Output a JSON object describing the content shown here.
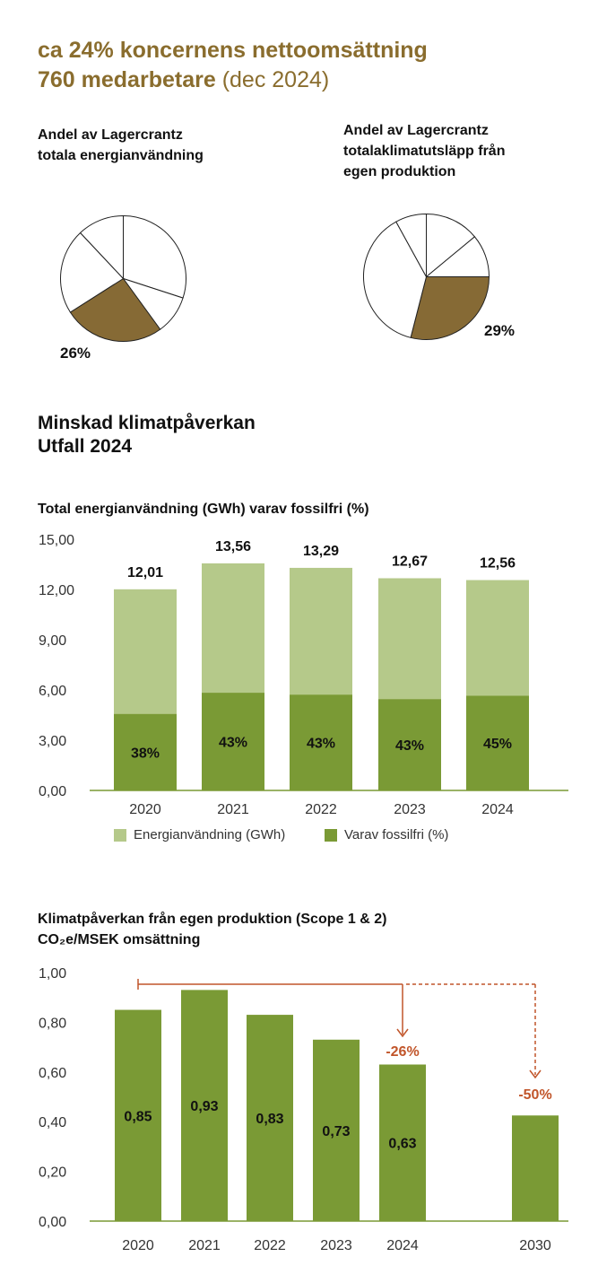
{
  "header": {
    "line1": "ca 24% koncernens nettoomsättning",
    "line2_bold": "760 medarbetare",
    "line2_light": "(dec 2024)"
  },
  "colors": {
    "brown": "#866a35",
    "light_green": "#b5c98a",
    "dark_green": "#7a9a35",
    "accent_orange": "#c1552a",
    "gold_text": "#8a6d2e"
  },
  "pie_charts": [
    {
      "title_line1": "Andel av Lagercrantz",
      "title_line2": "totala energianvändning",
      "highlight_label": "26%"
    },
    {
      "title_line1": "Andel av Lagercrantz",
      "title_line2": "totalaklimatutsläpp från",
      "title_line3": "egen produktion",
      "highlight_label": "29%"
    }
  ],
  "section": {
    "title_line1": "Minskad klimatpåverkan",
    "title_line2": "Utfall 2024"
  },
  "chart_data": [
    {
      "type": "pie",
      "slices": [
        {
          "value": 30,
          "highlight": false
        },
        {
          "value": 10,
          "highlight": false
        },
        {
          "value": 26,
          "highlight": true
        },
        {
          "value": 22,
          "highlight": false
        },
        {
          "value": 12,
          "highlight": false
        }
      ]
    },
    {
      "type": "pie",
      "slices": [
        {
          "value": 14,
          "highlight": false
        },
        {
          "value": 11,
          "highlight": false
        },
        {
          "value": 29,
          "highlight": true
        },
        {
          "value": 38,
          "highlight": false
        },
        {
          "value": 8,
          "highlight": false
        }
      ]
    },
    {
      "type": "bar",
      "title": "Total energianvändning (GWh) varav fossilfri (%)",
      "categories": [
        "2020",
        "2021",
        "2022",
        "2023",
        "2024"
      ],
      "ylim": [
        0,
        15
      ],
      "yticks": [
        "0,00",
        "3,00",
        "6,00",
        "9,00",
        "12,00",
        "15,00"
      ],
      "series": [
        {
          "name": "Energianvändning (GWh)",
          "values": [
            12.01,
            13.56,
            13.29,
            12.67,
            12.56
          ],
          "labels": [
            "12,01",
            "13,56",
            "13,29",
            "12,67",
            "12,56"
          ]
        },
        {
          "name": "Varav fossilfri (%)",
          "percent": [
            38,
            43,
            43,
            43,
            45
          ],
          "labels": [
            "38%",
            "43%",
            "43%",
            "43%",
            "45%"
          ]
        }
      ],
      "legend": "bottom"
    },
    {
      "type": "bar",
      "title_line1": "Klimatpåverkan från egen produktion (Scope 1 & 2)",
      "title_line2": "CO₂e/MSEK omsättning",
      "categories": [
        "2020",
        "2021",
        "2022",
        "2023",
        "2024",
        "2030"
      ],
      "values": [
        0.85,
        0.93,
        0.83,
        0.73,
        0.63,
        0.425
      ],
      "value_labels": [
        "0,85",
        "0,93",
        "0,83",
        "0,73",
        "0,63",
        ""
      ],
      "ylim": [
        0,
        1
      ],
      "yticks": [
        "0,00",
        "0,20",
        "0,40",
        "0,60",
        "0,80",
        "1,00"
      ],
      "annotations": [
        "-26%",
        "-50%"
      ]
    }
  ]
}
